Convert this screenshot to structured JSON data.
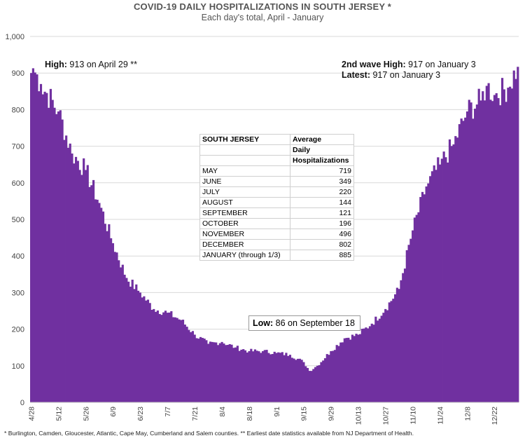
{
  "chart_data": {
    "type": "bar",
    "title": "COVID-19 DAILY HOSPITALIZATIONS IN SOUTH JERSEY *",
    "subtitle": "Each day's total, April - January",
    "ylim": [
      0,
      1000
    ],
    "yticks": [
      0,
      100,
      200,
      300,
      400,
      500,
      600,
      700,
      800,
      900,
      1000
    ],
    "ytick_labels": [
      "0",
      "100",
      "200",
      "300",
      "400",
      "500",
      "600",
      "700",
      "800",
      "900",
      "1,000"
    ],
    "xtick_labels": [
      "4/28",
      "5/12",
      "5/26",
      "6/9",
      "6/23",
      "7/7",
      "7/21",
      "8/4",
      "8/18",
      "9/1",
      "9/15",
      "9/29",
      "10/13",
      "10/27",
      "11/10",
      "11/24",
      "12/8",
      "12/22"
    ],
    "grid": "horizontal",
    "bar_color": "#7030A0",
    "start_date": "April 28",
    "end_date": "January 3",
    "anchor_values": [
      {
        "date": "4/28",
        "value": 900
      },
      {
        "date": "4/29",
        "value": 913
      },
      {
        "date": "5/3",
        "value": 870
      },
      {
        "date": "5/12",
        "value": 795
      },
      {
        "date": "5/19",
        "value": 680
      },
      {
        "date": "5/26",
        "value": 635
      },
      {
        "date": "6/2",
        "value": 545
      },
      {
        "date": "6/9",
        "value": 435
      },
      {
        "date": "6/16",
        "value": 340
      },
      {
        "date": "6/23",
        "value": 300
      },
      {
        "date": "6/30",
        "value": 255
      },
      {
        "date": "7/7",
        "value": 245
      },
      {
        "date": "7/14",
        "value": 225
      },
      {
        "date": "7/21",
        "value": 185
      },
      {
        "date": "7/28",
        "value": 160
      },
      {
        "date": "8/4",
        "value": 165
      },
      {
        "date": "8/11",
        "value": 150
      },
      {
        "date": "8/18",
        "value": 140
      },
      {
        "date": "8/25",
        "value": 140
      },
      {
        "date": "9/1",
        "value": 135
      },
      {
        "date": "9/8",
        "value": 130
      },
      {
        "date": "9/15",
        "value": 110
      },
      {
        "date": "9/18",
        "value": 86
      },
      {
        "date": "9/22",
        "value": 100
      },
      {
        "date": "9/29",
        "value": 140
      },
      {
        "date": "10/6",
        "value": 175
      },
      {
        "date": "10/13",
        "value": 185
      },
      {
        "date": "10/20",
        "value": 215
      },
      {
        "date": "10/27",
        "value": 255
      },
      {
        "date": "11/3",
        "value": 310
      },
      {
        "date": "11/10",
        "value": 470
      },
      {
        "date": "11/17",
        "value": 590
      },
      {
        "date": "11/24",
        "value": 650
      },
      {
        "date": "12/1",
        "value": 705
      },
      {
        "date": "12/8",
        "value": 795
      },
      {
        "date": "12/15",
        "value": 825
      },
      {
        "date": "12/18",
        "value": 865
      },
      {
        "date": "12/22",
        "value": 840
      },
      {
        "date": "12/29",
        "value": 860
      },
      {
        "date": "1/3",
        "value": 917
      }
    ],
    "annotations": {
      "high": {
        "label": "High:",
        "text": " 913 on April 29 **"
      },
      "second_wave": {
        "label": "2nd wave High:",
        "text": " 917 on January 3"
      },
      "latest": {
        "label": "Latest:",
        "text": " 917 on January 3"
      },
      "low": {
        "label": "Low:",
        "text": " 86 on September  18"
      }
    },
    "table": {
      "header": [
        "SOUTH JERSEY",
        "Average"
      ],
      "header_lines": [
        "Daily",
        "Hospitalizations"
      ],
      "rows": [
        {
          "month": "MAY",
          "value": "719"
        },
        {
          "month": "JUNE",
          "value": "349"
        },
        {
          "month": "JULY",
          "value": "220"
        },
        {
          "month": "AUGUST",
          "value": "144"
        },
        {
          "month": "SEPTEMBER",
          "value": "121"
        },
        {
          "month": "OCTOBER",
          "value": "196"
        },
        {
          "month": "NOVEMBER",
          "value": "496"
        },
        {
          "month": "DECEMBER",
          "value": "802"
        },
        {
          "month": "JANUARY (through 1/3)",
          "value": "885"
        }
      ]
    }
  },
  "footnote": "* Burlington, Camden, Gloucester, Atlantic, Cape May, Cumberland and Salem counties. ** Earliest date statistics available from NJ Department of Health."
}
